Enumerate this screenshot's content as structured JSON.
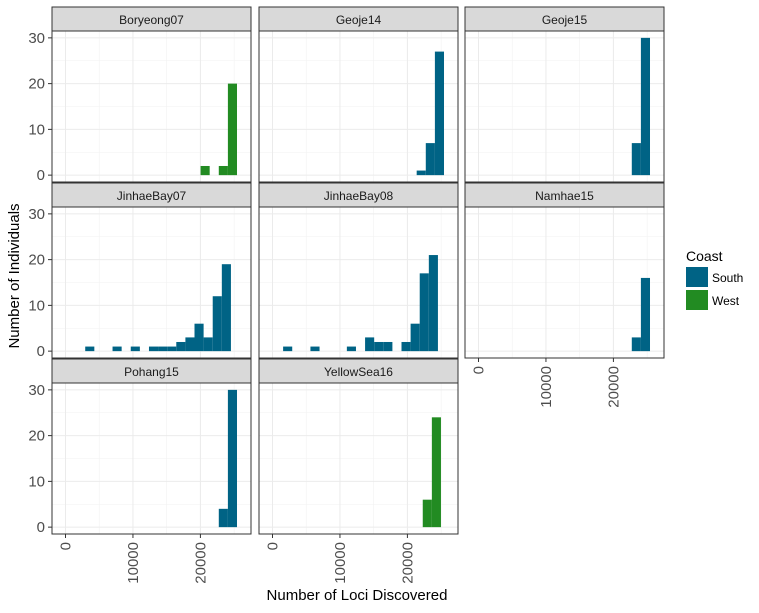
{
  "chart_data": {
    "type": "histogram",
    "xlabel": "Number of Loci Discovered",
    "ylabel": "Number of Individuals",
    "xlim": [
      -2000,
      27500
    ],
    "ylim": [
      -1.5,
      31.5
    ],
    "x_ticks": [
      0,
      10000,
      20000
    ],
    "y_ticks": [
      0,
      10,
      20,
      30
    ],
    "bin_width": 1350,
    "grid": true,
    "legend_position": "right",
    "legend": {
      "title": "Coast",
      "entries": [
        {
          "label": "South",
          "color": "#006385"
        },
        {
          "label": "West",
          "color": "#228b22"
        }
      ]
    },
    "panels": [
      {
        "name": "Boryeong07",
        "coast": "West",
        "bars": [
          [
            20700,
            2
          ],
          [
            23400,
            2
          ],
          [
            24750,
            20
          ]
        ]
      },
      {
        "name": "Geoje14",
        "coast": "South",
        "bars": [
          [
            22050,
            1
          ],
          [
            23400,
            7
          ],
          [
            24750,
            27
          ]
        ]
      },
      {
        "name": "Geoje15",
        "coast": "South",
        "bars": [
          [
            23400,
            7
          ],
          [
            24750,
            30
          ]
        ]
      },
      {
        "name": "JinhaeBay07",
        "coast": "South",
        "bars": [
          [
            3600,
            1
          ],
          [
            7650,
            1
          ],
          [
            10350,
            1
          ],
          [
            13050,
            1
          ],
          [
            14400,
            1
          ],
          [
            15750,
            1
          ],
          [
            17100,
            2
          ],
          [
            18450,
            3
          ],
          [
            19800,
            6
          ],
          [
            21150,
            3
          ],
          [
            22500,
            12
          ],
          [
            23850,
            19
          ]
        ]
      },
      {
        "name": "JinhaeBay08",
        "coast": "South",
        "bars": [
          [
            2250,
            1
          ],
          [
            6300,
            1
          ],
          [
            11700,
            1
          ],
          [
            14400,
            3
          ],
          [
            15750,
            2
          ],
          [
            17100,
            2
          ],
          [
            19800,
            2
          ],
          [
            21150,
            6
          ],
          [
            22500,
            17
          ],
          [
            23850,
            21
          ]
        ]
      },
      {
        "name": "Namhae15",
        "coast": "South",
        "bars": [
          [
            23400,
            3
          ],
          [
            24750,
            16
          ]
        ]
      },
      {
        "name": "Pohang15",
        "coast": "South",
        "bars": [
          [
            23400,
            4
          ],
          [
            24750,
            30
          ]
        ]
      },
      {
        "name": "YellowSea16",
        "coast": "West",
        "bars": [
          [
            22950,
            6
          ],
          [
            24300,
            24
          ]
        ]
      }
    ]
  }
}
